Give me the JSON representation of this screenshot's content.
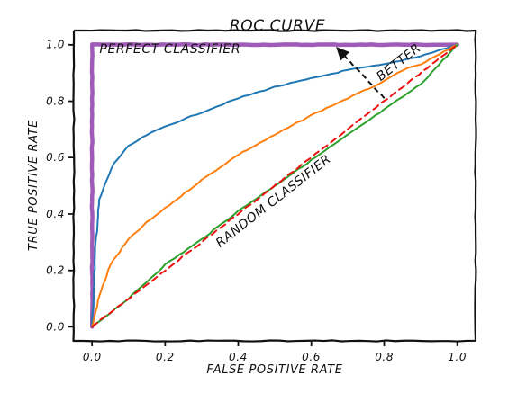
{
  "chart_data": {
    "type": "line",
    "title": "ROC CURVE",
    "xlabel": "FALSE POSITIVE RATE",
    "ylabel": "TRUE POSITIVE RATE",
    "xlim": [
      -0.05,
      1.05
    ],
    "ylim": [
      -0.05,
      1.05
    ],
    "xticks": [
      0.0,
      0.2,
      0.4,
      0.6,
      0.8,
      1.0
    ],
    "yticks": [
      0.0,
      0.2,
      0.4,
      0.6,
      0.8,
      1.0
    ],
    "xtick_labels": [
      "0.0",
      "0.2",
      "0.4",
      "0.6",
      "0.8",
      "1.0"
    ],
    "ytick_labels": [
      "0.0",
      "0.2",
      "0.4",
      "0.6",
      "0.8",
      "1.0"
    ],
    "grid": false,
    "style": "xkcd",
    "series": [
      {
        "kind": "perfect",
        "color": "#a05bb8",
        "x": [
          0.0,
          0.0,
          1.0
        ],
        "y": [
          0.0,
          1.0,
          1.0
        ]
      },
      {
        "kind": "curve",
        "color": "#1f77b4",
        "x": [
          0.0,
          0.01,
          0.02,
          0.04,
          0.06,
          0.1,
          0.15,
          0.2,
          0.3,
          0.4,
          0.5,
          0.6,
          0.7,
          0.8,
          0.9,
          1.0
        ],
        "y": [
          0.0,
          0.3,
          0.45,
          0.52,
          0.58,
          0.64,
          0.68,
          0.71,
          0.76,
          0.81,
          0.85,
          0.88,
          0.91,
          0.93,
          0.96,
          1.0
        ]
      },
      {
        "kind": "curve",
        "color": "#ff7f0e",
        "x": [
          0.0,
          0.02,
          0.05,
          0.1,
          0.15,
          0.2,
          0.3,
          0.4,
          0.5,
          0.6,
          0.7,
          0.8,
          0.85,
          0.9,
          1.0
        ],
        "y": [
          0.0,
          0.11,
          0.22,
          0.31,
          0.37,
          0.42,
          0.52,
          0.61,
          0.68,
          0.75,
          0.81,
          0.87,
          0.91,
          0.93,
          1.0
        ]
      },
      {
        "kind": "curve",
        "color": "#2ca02c",
        "x": [
          0.0,
          0.05,
          0.1,
          0.15,
          0.2,
          0.3,
          0.4,
          0.5,
          0.6,
          0.7,
          0.8,
          0.9,
          1.0
        ],
        "y": [
          0.0,
          0.05,
          0.1,
          0.16,
          0.22,
          0.31,
          0.41,
          0.5,
          0.59,
          0.68,
          0.77,
          0.86,
          1.0
        ]
      },
      {
        "kind": "random",
        "color": "#ee1111",
        "dashed": true,
        "x": [
          0.0,
          1.0
        ],
        "y": [
          0.0,
          1.0
        ]
      }
    ],
    "annotations": [
      {
        "text": "PERFECT CLASSIFIER",
        "x": 0.02,
        "y": 0.97,
        "color": "#8a2fc9",
        "rotation": 0
      },
      {
        "text": "RANDOM CLASSIFIER",
        "x": 0.35,
        "y": 0.28,
        "color": "#ee1111",
        "rotation": -38
      },
      {
        "text": "BETTER",
        "x": 0.79,
        "y": 0.87,
        "color": "#111111",
        "rotation": -38
      }
    ],
    "arrow": {
      "from": [
        0.8,
        0.81
      ],
      "to": [
        0.67,
        0.99
      ],
      "color": "#111111"
    }
  }
}
